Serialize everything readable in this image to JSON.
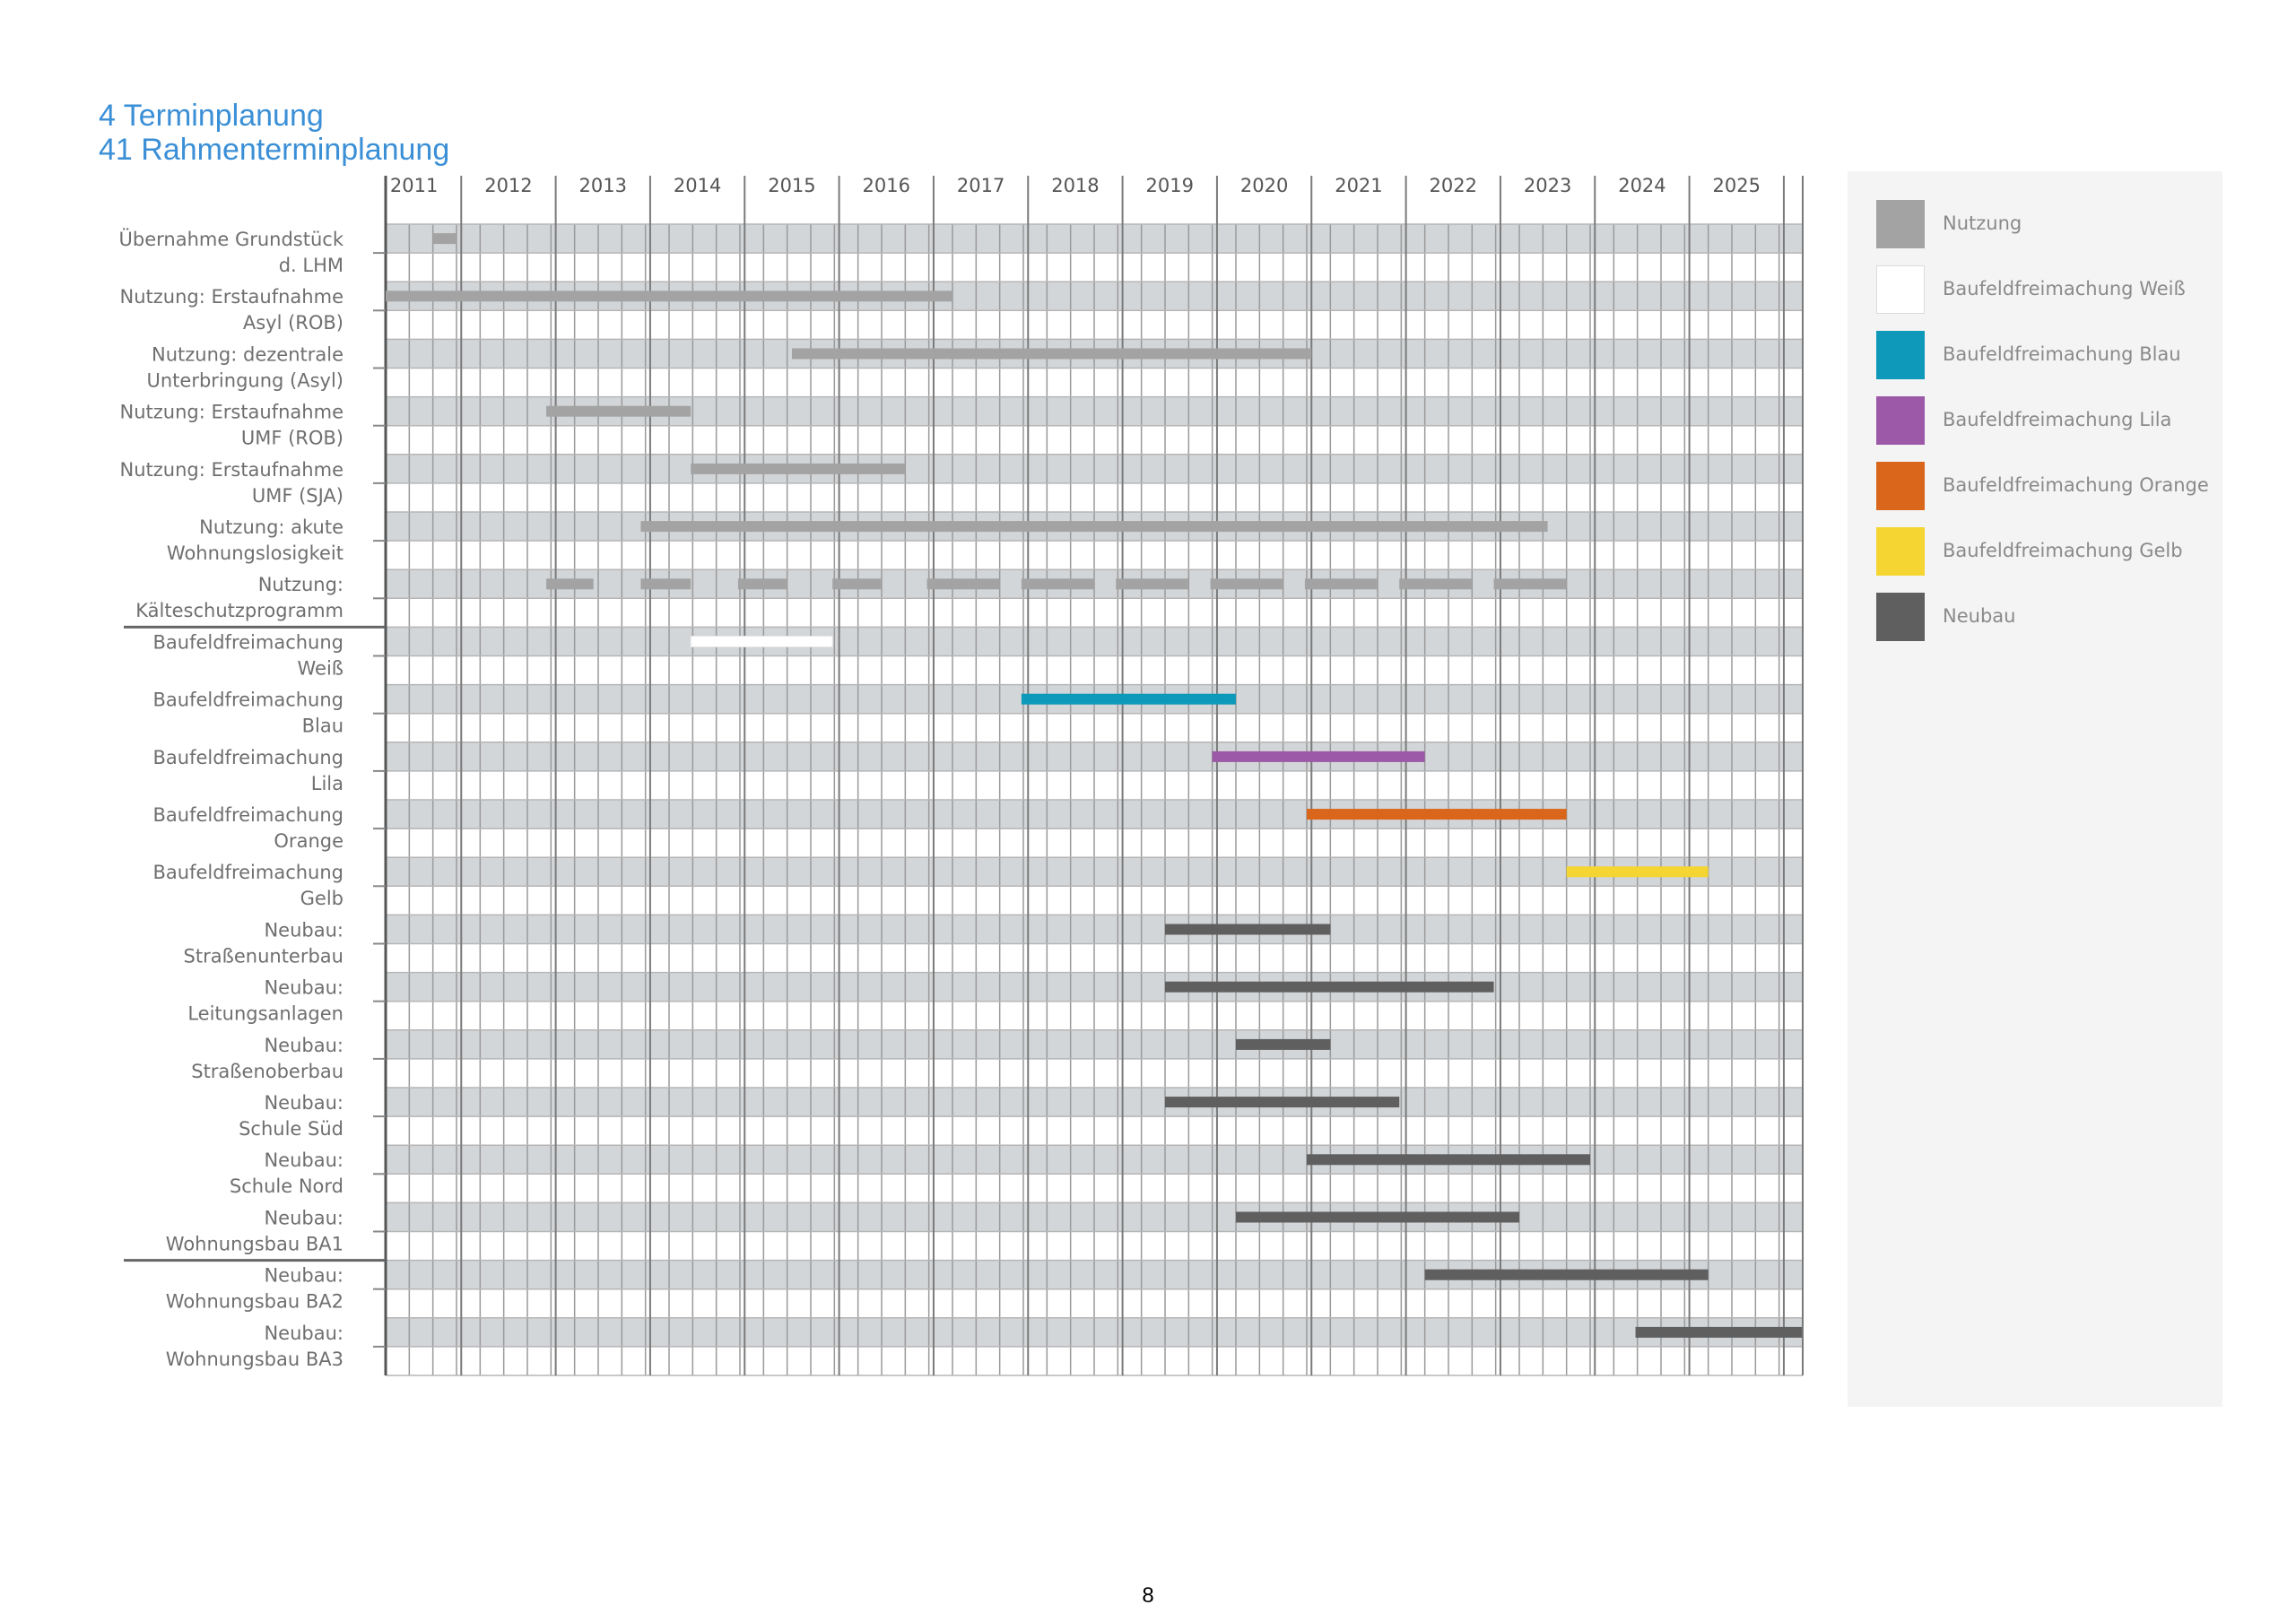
{
  "heading": {
    "section": "4   Terminplanung",
    "subsection": "41 Rahmenterminplanung"
  },
  "page_number": "8",
  "colors": {
    "nutzung": "#a3a3a3",
    "weiss": "#ffffff",
    "blau": "#0e98b9",
    "lila": "#9b59a8",
    "orange": "#d9661a",
    "gelb": "#f5d531",
    "neubau": "#5f5f5f",
    "band": "#d3d6d9",
    "grid": "#8e8e8e"
  },
  "chart_data": {
    "type": "gantt",
    "years": [
      "2011",
      "2012",
      "2013",
      "2014",
      "2015",
      "2016",
      "2017",
      "2018",
      "2019",
      "2020",
      "2021",
      "2022",
      "2023",
      "2024",
      "2025"
    ],
    "x_range": [
      2010.7,
      2025.7
    ],
    "separators_after": [
      6,
      17
    ],
    "rows": [
      {
        "label": [
          "Übernahme Grundstück",
          "d. LHM"
        ],
        "color": "nutzung",
        "bars": [
          [
            2011.2,
            2011.45
          ]
        ]
      },
      {
        "label": [
          "Nutzung: Erstaufnahme",
          "Asyl (ROB)"
        ],
        "color": "nutzung",
        "bars": [
          [
            2010.7,
            2016.7
          ]
        ]
      },
      {
        "label": [
          "Nutzung: dezentrale",
          "Unterbringung (Asyl)"
        ],
        "color": "nutzung",
        "bars": [
          [
            2015.0,
            2020.5
          ]
        ]
      },
      {
        "label": [
          "Nutzung: Erstaufnahme",
          "UMF (ROB)"
        ],
        "color": "nutzung",
        "bars": [
          [
            2012.4,
            2013.93
          ]
        ]
      },
      {
        "label": [
          "Nutzung: Erstaufnahme",
          "UMF (SJA)"
        ],
        "color": "nutzung",
        "bars": [
          [
            2013.93,
            2016.2
          ]
        ]
      },
      {
        "label": [
          "Nutzung: akute",
          "Wohnungslosigkeit"
        ],
        "color": "nutzung",
        "bars": [
          [
            2013.4,
            2023.0
          ]
        ]
      },
      {
        "label": [
          "Nutzung:",
          "Kälteschutzprogramm"
        ],
        "color": "nutzung",
        "bars": [
          [
            2012.4,
            2012.9
          ],
          [
            2013.4,
            2013.93
          ],
          [
            2014.43,
            2014.95
          ],
          [
            2015.43,
            2015.95
          ],
          [
            2016.43,
            2017.2
          ],
          [
            2017.43,
            2018.2
          ],
          [
            2018.43,
            2019.2
          ],
          [
            2019.43,
            2020.2
          ],
          [
            2020.43,
            2021.2
          ],
          [
            2021.43,
            2022.2
          ],
          [
            2022.43,
            2023.2
          ]
        ]
      },
      {
        "label": [
          "Baufeldfreimachung",
          "Weiß"
        ],
        "color": "weiss",
        "bars": [
          [
            2013.93,
            2015.43
          ]
        ]
      },
      {
        "label": [
          "Baufeldfreimachung",
          "Blau"
        ],
        "color": "blau",
        "bars": [
          [
            2017.43,
            2019.7
          ]
        ]
      },
      {
        "label": [
          "Baufeldfreimachung",
          "Lila"
        ],
        "color": "lila",
        "bars": [
          [
            2019.45,
            2021.7
          ]
        ]
      },
      {
        "label": [
          "Baufeldfreimachung",
          "Orange"
        ],
        "color": "orange",
        "bars": [
          [
            2020.45,
            2023.2
          ]
        ]
      },
      {
        "label": [
          "Baufeldfreimachung",
          "Gelb"
        ],
        "color": "gelb",
        "bars": [
          [
            2023.2,
            2024.7
          ]
        ]
      },
      {
        "label": [
          "Neubau:",
          "Straßenunterbau"
        ],
        "color": "neubau",
        "bars": [
          [
            2018.95,
            2020.7
          ]
        ]
      },
      {
        "label": [
          "Neubau:",
          "Leitungsanlagen"
        ],
        "color": "neubau",
        "bars": [
          [
            2018.95,
            2022.43
          ]
        ]
      },
      {
        "label": [
          "Neubau:",
          "Straßenoberbau"
        ],
        "color": "neubau",
        "bars": [
          [
            2019.7,
            2020.7
          ]
        ]
      },
      {
        "label": [
          "Neubau:",
          "Schule Süd"
        ],
        "color": "neubau",
        "bars": [
          [
            2018.95,
            2021.43
          ]
        ]
      },
      {
        "label": [
          "Neubau:",
          "Schule Nord"
        ],
        "color": "neubau",
        "bars": [
          [
            2020.45,
            2023.45
          ]
        ]
      },
      {
        "label": [
          "Neubau:",
          "Wohnungsbau BA1"
        ],
        "color": "neubau",
        "bars": [
          [
            2019.7,
            2022.7
          ]
        ]
      },
      {
        "label": [
          "Neubau:",
          "Wohnungsbau BA2"
        ],
        "color": "neubau",
        "bars": [
          [
            2021.7,
            2024.7
          ]
        ]
      },
      {
        "label": [
          "Neubau:",
          "Wohnungsbau BA3"
        ],
        "color": "neubau",
        "bars": [
          [
            2023.93,
            2025.7
          ]
        ]
      }
    ],
    "legend": [
      {
        "label": "Nutzung",
        "color": "nutzung"
      },
      {
        "label": "Baufeldfreimachung Weiß",
        "color": "weiss"
      },
      {
        "label": "Baufeldfreimachung Blau",
        "color": "blau"
      },
      {
        "label": "Baufeldfreimachung Lila",
        "color": "lila"
      },
      {
        "label": "Baufeldfreimachung Orange",
        "color": "orange"
      },
      {
        "label": "Baufeldfreimachung Gelb",
        "color": "gelb"
      },
      {
        "label": "Neubau",
        "color": "neubau"
      }
    ],
    "legend_placement": "right"
  }
}
